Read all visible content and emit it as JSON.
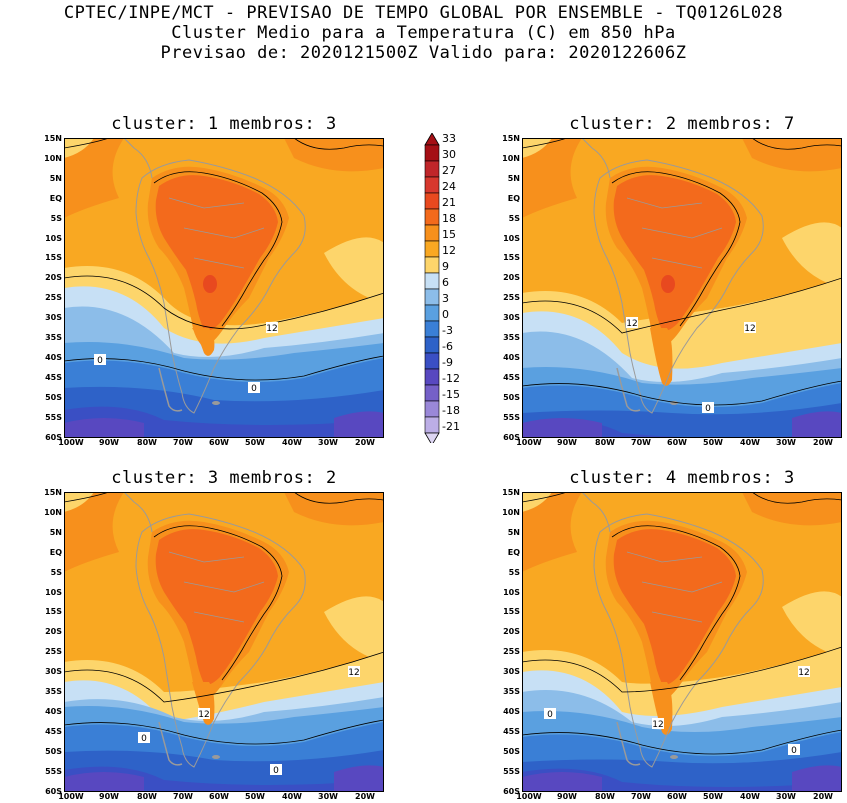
{
  "header": {
    "line1": "CPTEC/INPE/MCT - PREVISAO DE TEMPO GLOBAL POR ENSEMBLE - TQ0126L028",
    "line2": "Cluster Medio para a Temperatura (C) em 850 hPa",
    "line3": "Previsao de: 2020121500Z   Valido para: 2020122606Z"
  },
  "panels": [
    {
      "title": "cluster: 1  membros: 3",
      "contour_labels": [
        "12",
        "0",
        "0"
      ]
    },
    {
      "title": "cluster: 2  membros: 7",
      "contour_labels": [
        "12",
        "12",
        "0"
      ]
    },
    {
      "title": "cluster: 3  membros: 2",
      "contour_labels": [
        "12",
        "12",
        "0",
        "0"
      ]
    },
    {
      "title": "cluster: 4  membros: 3",
      "contour_labels": [
        "12",
        "12",
        "0",
        "0"
      ]
    }
  ],
  "lat_ticks": [
    "15N",
    "10N",
    "5N",
    "EQ",
    "5S",
    "10S",
    "15S",
    "20S",
    "25S",
    "30S",
    "35S",
    "40S",
    "45S",
    "50S",
    "55S",
    "60S"
  ],
  "lon_ticks": [
    "100W",
    "90W",
    "80W",
    "70W",
    "60W",
    "50W",
    "40W",
    "30W",
    "20W"
  ],
  "colorbar": {
    "labels": [
      "33",
      "30",
      "27",
      "24",
      "21",
      "18",
      "15",
      "12",
      "9",
      "6",
      "3",
      "0",
      "-3",
      "-6",
      "-9",
      "-12",
      "-15",
      "-18",
      "-21"
    ],
    "colors": {
      "c33": "#a50f15",
      "c30": "#c0262a",
      "c27": "#d7382e",
      "c24": "#e8491f",
      "c21": "#f36a1c",
      "c18": "#f7901c",
      "c15": "#f9a822",
      "c12": "#fdd56b",
      "c9": "#c7e0f5",
      "c6": "#8cbde9",
      "c3": "#5aa0e0",
      "c0": "#3a7fd6",
      "cm3": "#2e62c8",
      "cm6": "#3a4fc4",
      "cm9": "#5848c0",
      "cm12": "#7560c8",
      "cm15": "#9a88d8",
      "cm18": "#bcaee6",
      "cm21": "#ddd5f2"
    }
  }
}
